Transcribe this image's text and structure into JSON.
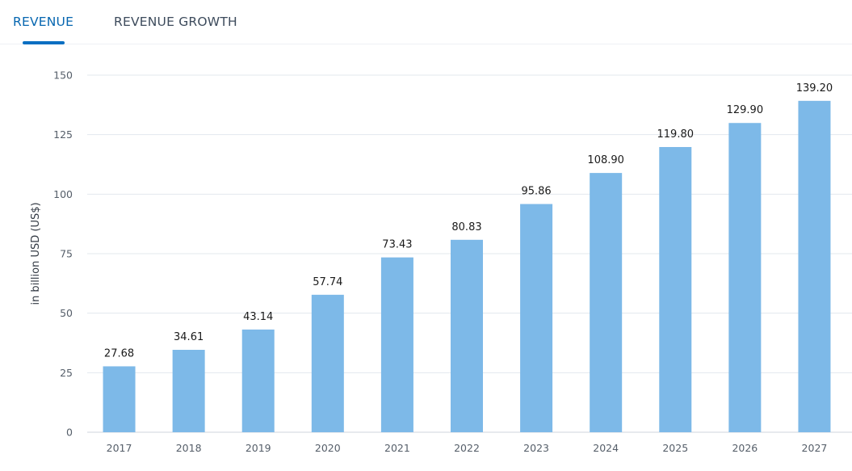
{
  "tabs": [
    {
      "label": "REVENUE",
      "active": true
    },
    {
      "label": "REVENUE GROWTH",
      "active": false
    }
  ],
  "colors": {
    "bar": "#7db9e8",
    "active_tab": "#0666b0",
    "gridline": "#e3e8ee"
  },
  "chart_data": {
    "type": "bar",
    "categories": [
      "2017",
      "2018",
      "2019",
      "2020",
      "2021",
      "2022",
      "2023",
      "2024",
      "2025",
      "2026",
      "2027"
    ],
    "values": [
      27.68,
      34.61,
      43.14,
      57.74,
      73.43,
      80.83,
      95.86,
      108.9,
      119.8,
      129.9,
      139.2
    ],
    "value_labels": [
      "27.68",
      "34.61",
      "43.14",
      "57.74",
      "73.43",
      "80.83",
      "95.86",
      "108.90",
      "119.80",
      "129.90",
      "139.20"
    ],
    "ylabel": "in billion USD (US$)",
    "ylim": [
      0,
      150
    ],
    "yticks": [
      "0",
      "25",
      "50",
      "75",
      "100",
      "125",
      "150"
    ],
    "grid": true,
    "legend": "none"
  }
}
